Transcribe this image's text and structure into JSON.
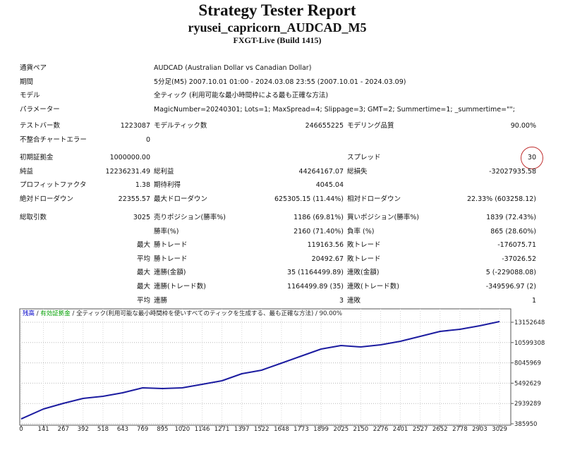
{
  "header": {
    "title": "Strategy Tester Report",
    "subtitle": "ryusei_capricorn_AUDCAD_M5",
    "build": "FXGT-Live (Build 1415)"
  },
  "table": {
    "sections": [
      {
        "rows": [
          {
            "l1": "通貨ペア",
            "l2": "AUDCAD (Australian Dollar vs Canadian Dollar)"
          },
          {
            "l1": "期間",
            "l2": "5分足(M5) 2007.10.01 01:00 - 2024.03.08 23:55 (2007.10.01 - 2024.03.09)"
          },
          {
            "l1": "モデル",
            "l2": "全ティック (利用可能な最小時間枠による最も正確な方法)"
          },
          {
            "l1": "パラメーター",
            "l2": "MagicNumber=20240301; Lots=1; MaxSpread=4; Slippage=3; GMT=2; Summertime=1; _summertime=\"\";"
          }
        ]
      },
      {
        "rows": [
          {
            "l1": "テストバー数",
            "v1": "1223087",
            "l2": "モデルティック数",
            "v2": "246655225",
            "l3": "モデリング品質",
            "v3": "90.00%"
          },
          {
            "l1": "不整合チャートエラー",
            "v1": "0"
          }
        ]
      },
      {
        "rows": [
          {
            "l1": "初期証拠金",
            "v1": "1000000.00",
            "l3": "スプレッド",
            "v3": "30"
          },
          {
            "l1": "純益",
            "v1": "12236231.49",
            "l2": "総利益",
            "v2": "44264167.07",
            "l3": "総損失",
            "v3": "-32027935.58"
          },
          {
            "l1": "プロフィットファクタ",
            "v1": "1.38",
            "l2": "期待利得",
            "v2": "4045.04"
          },
          {
            "l1": "絶対ドローダウン",
            "v1": "22355.57",
            "l2": "最大ドローダウン",
            "v2": "625305.15 (11.44%)",
            "l3": "相対ドローダウン",
            "v3": "22.33% (603258.12)"
          }
        ]
      },
      {
        "rows": [
          {
            "l1": "総取引数",
            "v1": "3025",
            "l2": "売りポジション(勝率%)",
            "v2": "1186 (69.81%)",
            "l3": "買いポジション(勝率%)",
            "v3": "1839 (72.43%)"
          },
          {
            "l2": "勝率(%)",
            "v2": "2160 (71.40%)",
            "l3": "負率 (%)",
            "v3": "865 (28.60%)"
          },
          {
            "v1": "最大",
            "l2": "勝トレード",
            "v2": "119163.56",
            "l3": "敗トレード",
            "v3": "-176075.71"
          },
          {
            "v1": "平均",
            "l2": "勝トレード",
            "v2": "20492.67",
            "l3": "敗トレード",
            "v3": "-37026.52"
          },
          {
            "v1": "最大",
            "l2": "連勝(金額)",
            "v2": "35 (1164499.89)",
            "l3": "連敗(金額)",
            "v3": "5 (-229088.08)"
          },
          {
            "v1": "最大",
            "l2": "連勝(トレード数)",
            "v2": "1164499.89 (35)",
            "l3": "連敗(トレード数)",
            "v3": "-349596.97 (2)"
          },
          {
            "v1": "平均",
            "l2": "連勝",
            "v2": "3",
            "l3": "連敗",
            "v3": "1"
          }
        ]
      }
    ]
  },
  "chart_data": {
    "type": "line",
    "legend": [
      {
        "text": "残高",
        "color": "#0000c8"
      },
      {
        "text": "有効証拠金",
        "color": "#00a000"
      },
      {
        "text": "全ティック(利用可能な最小時間枠を使いすべてのティックを生成する、最も正確な方法)"
      },
      {
        "text": "90.00%"
      }
    ],
    "legend_separator": " / ",
    "x": [
      0,
      141,
      267,
      392,
      518,
      643,
      769,
      895,
      1020,
      1146,
      1271,
      1397,
      1522,
      1648,
      1773,
      1899,
      2025,
      2150,
      2276,
      2401,
      2527,
      2652,
      2778,
      2903,
      3029
    ],
    "series": [
      {
        "color": "#1c1ca0",
        "values": [
          1000000,
          2250000,
          2960000,
          3580000,
          3840000,
          4290000,
          4910000,
          4820000,
          4910000,
          5350000,
          5790000,
          6680000,
          7120000,
          8010000,
          8900000,
          9780000,
          10230000,
          10050000,
          10320000,
          10760000,
          11380000,
          12000000,
          12270000,
          12710000,
          13240000
        ]
      }
    ],
    "xlim": [
      0,
      3100
    ],
    "ylim": [
      385950,
      14660000
    ],
    "xticks": [
      0,
      141,
      267,
      392,
      518,
      643,
      769,
      895,
      1020,
      1146,
      1271,
      1397,
      1522,
      1648,
      1773,
      1899,
      2025,
      2150,
      2276,
      2401,
      2527,
      2652,
      2778,
      2903,
      3029
    ],
    "yticks": [
      385950,
      2939289,
      5492629,
      8045969,
      10599308,
      13152648
    ],
    "grid": true
  }
}
